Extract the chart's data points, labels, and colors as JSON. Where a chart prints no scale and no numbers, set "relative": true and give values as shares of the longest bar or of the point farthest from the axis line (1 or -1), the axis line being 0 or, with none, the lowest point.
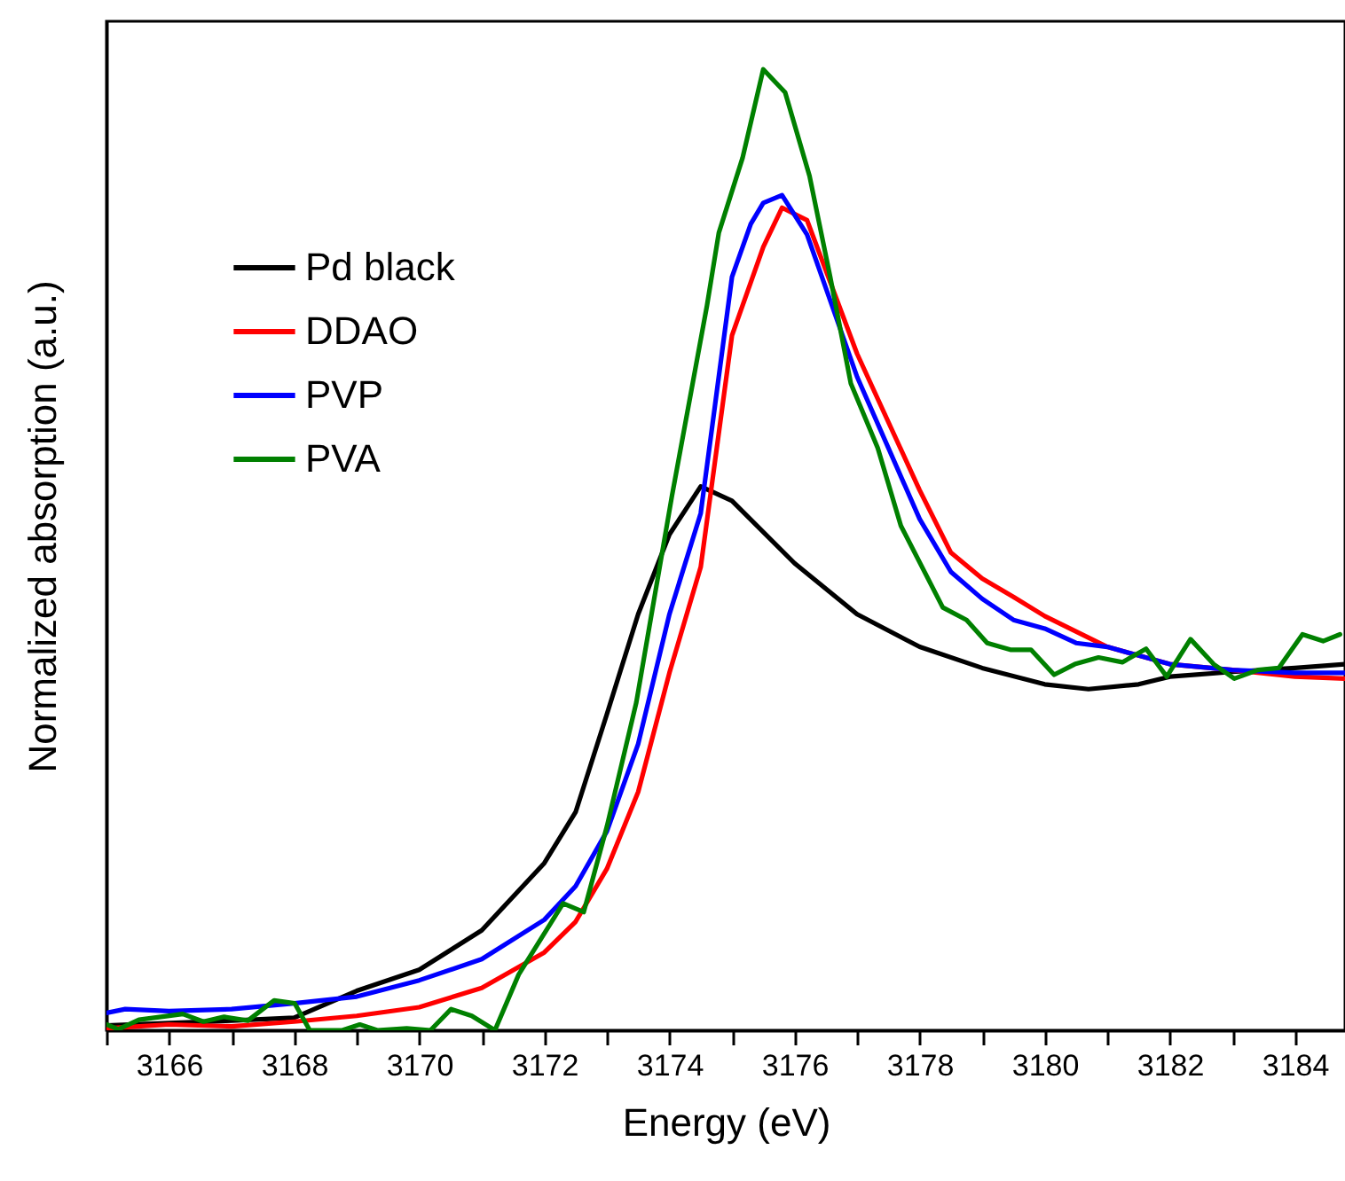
{
  "chart_data": {
    "type": "line",
    "relative": true,
    "xlabel": "Energy (eV)",
    "ylabel": "Normalized absorption (a.u.)",
    "xlim": [
      3165,
      3184.8
    ],
    "xticks": [
      {
        "value": 3165,
        "label": null
      },
      3166,
      {
        "value": 3167,
        "label": null
      },
      3168,
      {
        "value": 3169,
        "label": null
      },
      3170,
      {
        "value": 3171,
        "label": null
      },
      3172,
      {
        "value": 3173,
        "label": null
      },
      3174,
      {
        "value": 3175,
        "label": null
      },
      3176,
      {
        "value": 3177,
        "label": null
      },
      3178,
      {
        "value": 3179,
        "label": null
      },
      3180,
      {
        "value": 3181,
        "label": null
      },
      3182,
      {
        "value": 3183,
        "label": null
      },
      3184
    ],
    "legend": "top left",
    "line_style": "solid",
    "marker": "none",
    "series": [
      {
        "name": "Pd black",
        "color": "#000000",
        "x": [
          3165,
          3167,
          3168,
          3169,
          3170,
          3171,
          3172,
          3172.5,
          3173,
          3173.5,
          3174,
          3174.5,
          3175,
          3176,
          3177,
          3178,
          3179,
          3180,
          3180.7,
          3181.5,
          3182,
          3183,
          3184,
          3184.8
        ],
        "values": [
          0.005,
          0.01,
          0.013,
          0.041,
          0.063,
          0.104,
          0.174,
          0.227,
          0.329,
          0.433,
          0.516,
          0.566,
          0.551,
          0.486,
          0.433,
          0.399,
          0.377,
          0.36,
          0.355,
          0.36,
          0.368,
          0.373,
          0.377,
          0.381
        ]
      },
      {
        "name": "DDAO",
        "color": "#ff0000",
        "x": [
          3165,
          3166,
          3167,
          3168,
          3169,
          3170,
          3171,
          3172,
          3172.5,
          3173,
          3173.5,
          3174,
          3174.5,
          3175,
          3175.5,
          3175.8,
          3176.2,
          3177,
          3178,
          3178.5,
          3179,
          3179.5,
          3180,
          3181,
          3182,
          3183,
          3184,
          3184.8
        ],
        "values": [
          0.002,
          0.006,
          0.004,
          0.009,
          0.015,
          0.024,
          0.044,
          0.081,
          0.113,
          0.168,
          0.248,
          0.372,
          0.482,
          0.723,
          0.815,
          0.856,
          0.843,
          0.704,
          0.562,
          0.497,
          0.47,
          0.451,
          0.431,
          0.399,
          0.381,
          0.375,
          0.368,
          0.366
        ]
      },
      {
        "name": "PVP",
        "color": "#0000ff",
        "x": [
          3165,
          3165.3,
          3166,
          3167,
          3168,
          3169,
          3170,
          3171,
          3172,
          3172.5,
          3173,
          3173.5,
          3174,
          3174.5,
          3175,
          3175.3,
          3175.5,
          3175.8,
          3176.2,
          3177,
          3178,
          3178.5,
          3179,
          3179.5,
          3180,
          3180.5,
          3181,
          3182,
          3183,
          3184,
          3184.8
        ],
        "values": [
          0.018,
          0.022,
          0.02,
          0.022,
          0.028,
          0.035,
          0.052,
          0.074,
          0.115,
          0.15,
          0.207,
          0.298,
          0.433,
          0.538,
          0.784,
          0.839,
          0.861,
          0.869,
          0.828,
          0.68,
          0.532,
          0.477,
          0.449,
          0.427,
          0.418,
          0.403,
          0.399,
          0.381,
          0.375,
          0.372,
          0.372
        ]
      },
      {
        "name": "PVA",
        "color": "#008000",
        "x": [
          3165,
          3165.19,
          3165.52,
          3166.22,
          3166.55,
          3166.88,
          3167.26,
          3167.68,
          3168.01,
          3168.25,
          3168.77,
          3169.05,
          3169.33,
          3169.8,
          3170.18,
          3170.51,
          3170.84,
          3171.21,
          3171.59,
          3172.3,
          3172.63,
          3173,
          3173.47,
          3174.04,
          3174.6,
          3174.79,
          3175.17,
          3175.5,
          3175.85,
          3176.24,
          3176.57,
          3176.9,
          3177.33,
          3177.7,
          3178.37,
          3178.75,
          3179.08,
          3179.45,
          3179.78,
          3180.15,
          3180.48,
          3180.86,
          3181.24,
          3181.62,
          3181.95,
          3182.33,
          3182.7,
          3183.03,
          3183.41,
          3183.74,
          3184.12,
          3184.45,
          3184.72
        ],
        "values": [
          0.006,
          0.001,
          0.011,
          0.017,
          0.009,
          0.014,
          0.01,
          0.031,
          0.028,
          0,
          0,
          0.006,
          0,
          0.002,
          0,
          0.022,
          0.015,
          0,
          0.058,
          0.132,
          0.123,
          0.212,
          0.341,
          0.556,
          0.754,
          0.83,
          0.908,
          1,
          0.976,
          0.889,
          0.784,
          0.673,
          0.606,
          0.525,
          0.44,
          0.427,
          0.403,
          0.396,
          0.396,
          0.37,
          0.381,
          0.388,
          0.383,
          0.397,
          0.368,
          0.407,
          0.381,
          0.366,
          0.375,
          0.377,
          0.412,
          0.405,
          0.412
        ]
      }
    ]
  }
}
